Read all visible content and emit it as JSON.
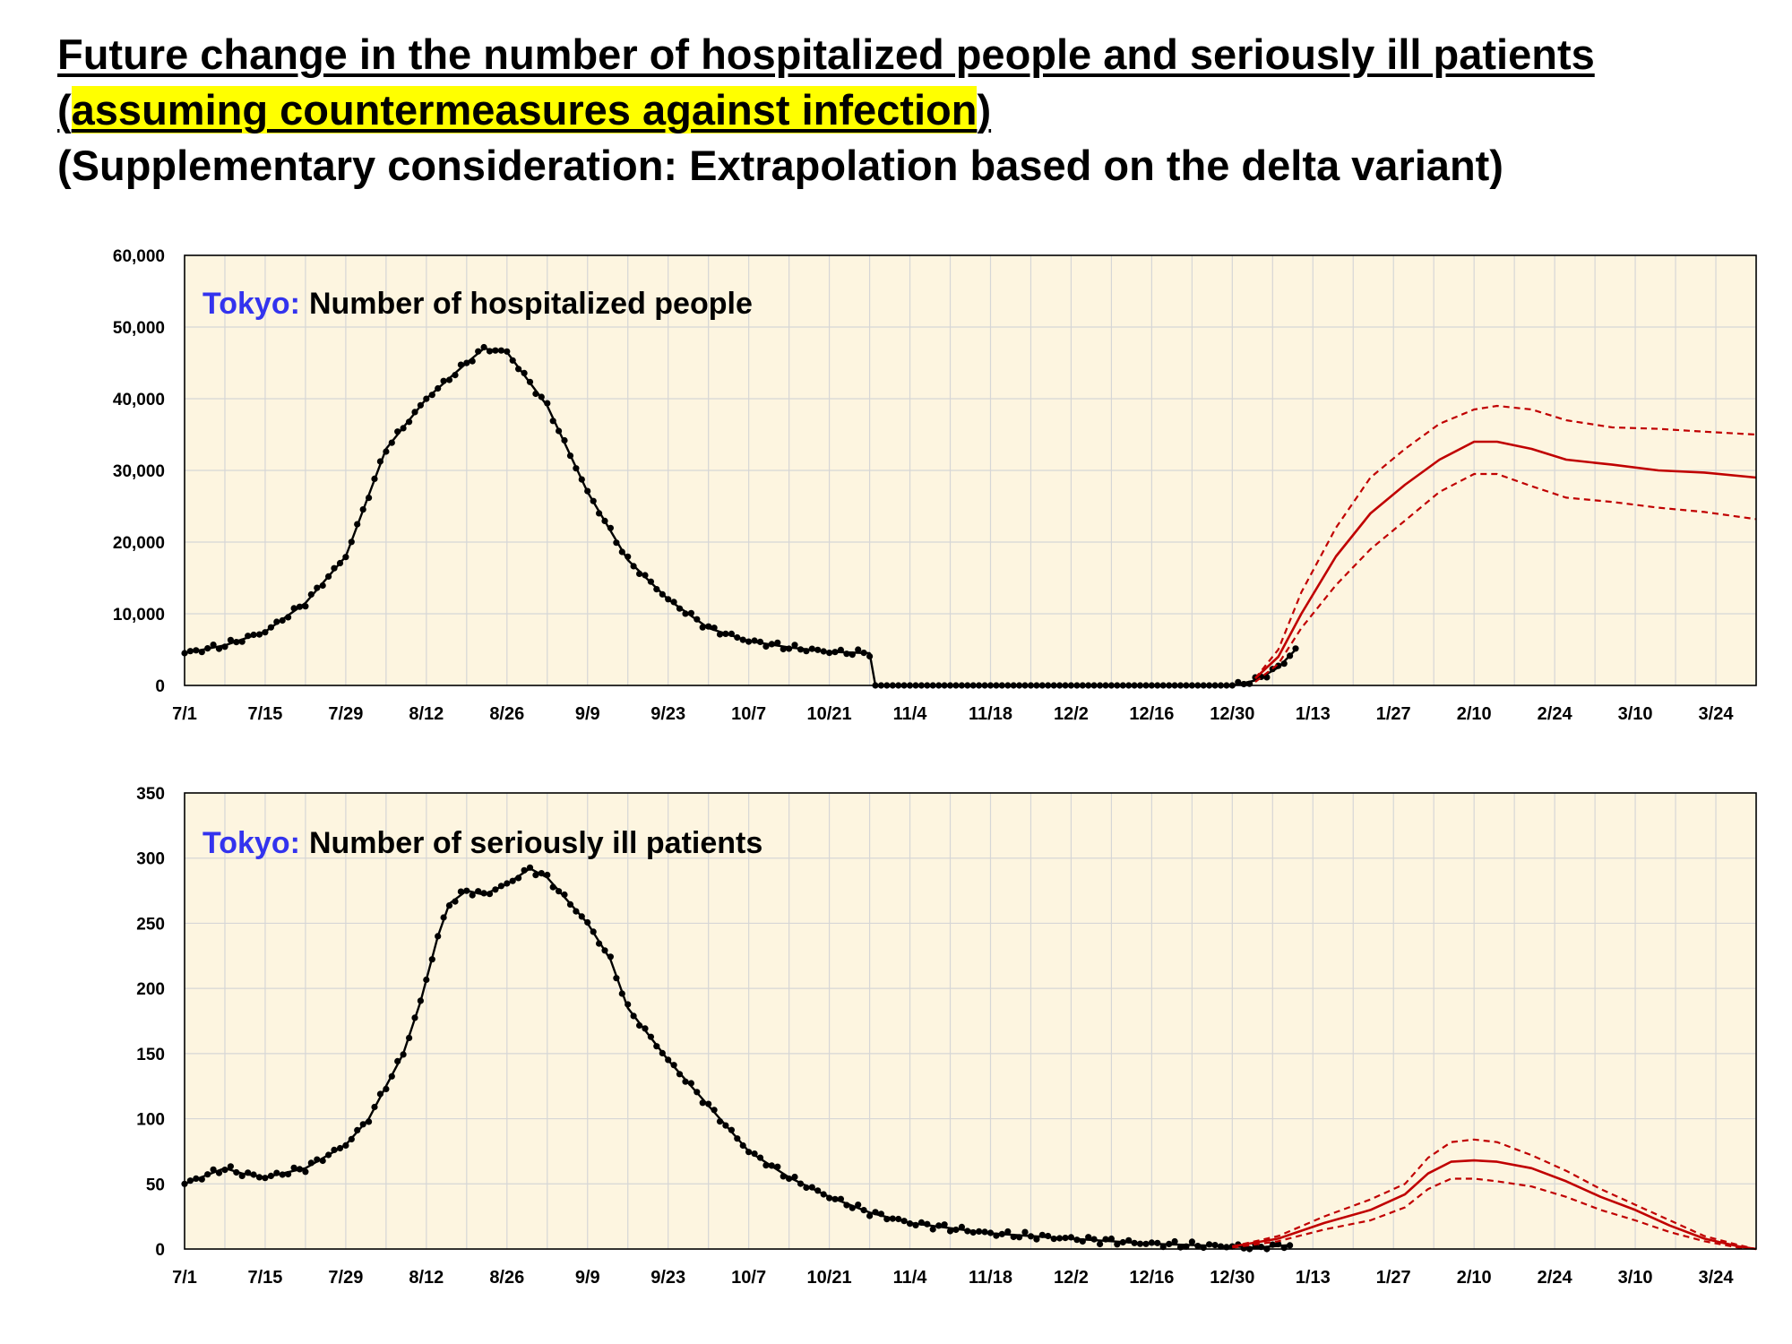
{
  "header": {
    "title_line1": "Future change in the number of hospitalized people and seriously ill patients",
    "title_line2_open": "(",
    "title_line2_highlight": "assuming countermeasures against infection",
    "title_line2_close": ")",
    "title_line3": "(Supplementary consideration: Extrapolation based on the delta variant)"
  },
  "colors": {
    "plot_bg": "#fdf5e0",
    "grid": "#d6d6d6",
    "observed": "#000000",
    "projection": "#c00000",
    "region_label": "#3333ee",
    "highlight": "#ffff00"
  },
  "x_axis": {
    "tick_labels": [
      "7/1",
      "7/15",
      "7/29",
      "8/12",
      "8/26",
      "9/9",
      "9/23",
      "10/7",
      "10/21",
      "11/4",
      "11/18",
      "12/2",
      "12/16",
      "12/30",
      "1/13",
      "1/27",
      "2/10",
      "2/24",
      "3/10",
      "3/24"
    ],
    "tick_days": [
      0,
      14,
      28,
      42,
      56,
      70,
      84,
      98,
      112,
      126,
      140,
      154,
      168,
      182,
      196,
      210,
      224,
      238,
      252,
      266
    ],
    "range_days": [
      0,
      273
    ]
  },
  "chart_data": [
    {
      "type": "line",
      "region_label": "Tokyo:",
      "title": "Number of hospitalized people",
      "ylim": [
        0,
        60000
      ],
      "y_ticks": [
        0,
        10000,
        20000,
        30000,
        40000,
        50000,
        60000
      ],
      "y_tick_labels": [
        "0",
        "10,000",
        "20,000",
        "30,000",
        "40,000",
        "50,000",
        "60,000"
      ],
      "grid": true,
      "observed": {
        "x": [
          0,
          7,
          14,
          21,
          28,
          35,
          42,
          49,
          52,
          56,
          63,
          70,
          77,
          84,
          91,
          98,
          105,
          112,
          119,
          120,
          126,
          140,
          154,
          168,
          182,
          186,
          190,
          193
        ],
        "y": [
          4500,
          5600,
          7500,
          11500,
          18000,
          33000,
          40000,
          45000,
          47000,
          46500,
          39000,
          27000,
          17500,
          12000,
          8000,
          6200,
          5300,
          4700,
          4500,
          0,
          0,
          0,
          0,
          0,
          0,
          700,
          2500,
          5000
        ]
      },
      "series": [
        {
          "name": "",
          "style": "solid",
          "x": [
            186,
            190,
            194,
            200,
            206,
            212,
            218,
            224,
            228,
            234,
            240,
            248,
            256,
            264,
            273
          ],
          "y": [
            1000,
            4000,
            10000,
            18000,
            24000,
            28000,
            31500,
            34000,
            34000,
            33000,
            31500,
            30800,
            30000,
            29700,
            29000
          ]
        },
        {
          "name": "",
          "style": "dashed",
          "x": [
            186,
            190,
            194,
            200,
            206,
            212,
            218,
            224,
            228,
            234,
            240,
            248,
            256,
            264,
            273
          ],
          "y": [
            1000,
            5000,
            13000,
            22000,
            29000,
            33000,
            36500,
            38500,
            39000,
            38500,
            37000,
            36000,
            35800,
            35400,
            35000
          ]
        },
        {
          "name": "",
          "style": "dashed",
          "x": [
            186,
            190,
            194,
            200,
            206,
            212,
            218,
            224,
            228,
            234,
            240,
            248,
            256,
            264,
            273
          ],
          "y": [
            500,
            3000,
            8000,
            14000,
            19000,
            23000,
            27000,
            29500,
            29500,
            27800,
            26200,
            25600,
            24800,
            24200,
            23200
          ]
        }
      ]
    },
    {
      "type": "line",
      "region_label": "Tokyo:",
      "title": "Number of seriously ill patients",
      "ylim": [
        0,
        350
      ],
      "y_ticks": [
        0,
        50,
        100,
        150,
        200,
        250,
        300,
        350
      ],
      "y_tick_labels": [
        "0",
        "50",
        "100",
        "150",
        "200",
        "250",
        "300",
        "350"
      ],
      "grid": true,
      "observed": {
        "x": [
          0,
          4,
          7,
          10,
          14,
          21,
          28,
          32,
          35,
          38,
          41,
          44,
          46,
          49,
          52,
          56,
          60,
          63,
          66,
          70,
          74,
          77,
          84,
          91,
          98,
          105,
          112,
          119,
          126,
          133,
          140,
          147,
          154,
          161,
          168,
          175,
          182,
          186,
          192
        ],
        "y": [
          50,
          57,
          62,
          58,
          55,
          62,
          80,
          100,
          125,
          150,
          190,
          240,
          265,
          275,
          272,
          280,
          292,
          285,
          270,
          250,
          222,
          185,
          145,
          110,
          75,
          55,
          40,
          28,
          20,
          16,
          12,
          10,
          8,
          6,
          4,
          3,
          2,
          1,
          3
        ]
      },
      "series": [
        {
          "name": "",
          "style": "solid",
          "x": [
            182,
            190,
            198,
            206,
            212,
            216,
            220,
            224,
            228,
            234,
            240,
            246,
            252,
            258,
            264,
            270,
            273
          ],
          "y": [
            2,
            8,
            20,
            30,
            42,
            58,
            67,
            68,
            67,
            62,
            52,
            40,
            30,
            18,
            8,
            2,
            0
          ]
        },
        {
          "name": "",
          "style": "dashed",
          "x": [
            182,
            190,
            198,
            206,
            212,
            216,
            220,
            224,
            228,
            234,
            240,
            246,
            252,
            258,
            264,
            270,
            273
          ],
          "y": [
            2,
            10,
            25,
            38,
            50,
            70,
            82,
            84,
            82,
            72,
            60,
            46,
            34,
            22,
            10,
            3,
            0
          ]
        },
        {
          "name": "",
          "style": "dashed",
          "x": [
            182,
            190,
            198,
            206,
            212,
            216,
            220,
            224,
            228,
            234,
            240,
            246,
            252,
            258,
            264,
            270,
            273
          ],
          "y": [
            1,
            6,
            15,
            22,
            32,
            46,
            54,
            54,
            52,
            48,
            40,
            30,
            22,
            13,
            6,
            1,
            0
          ]
        }
      ]
    }
  ]
}
